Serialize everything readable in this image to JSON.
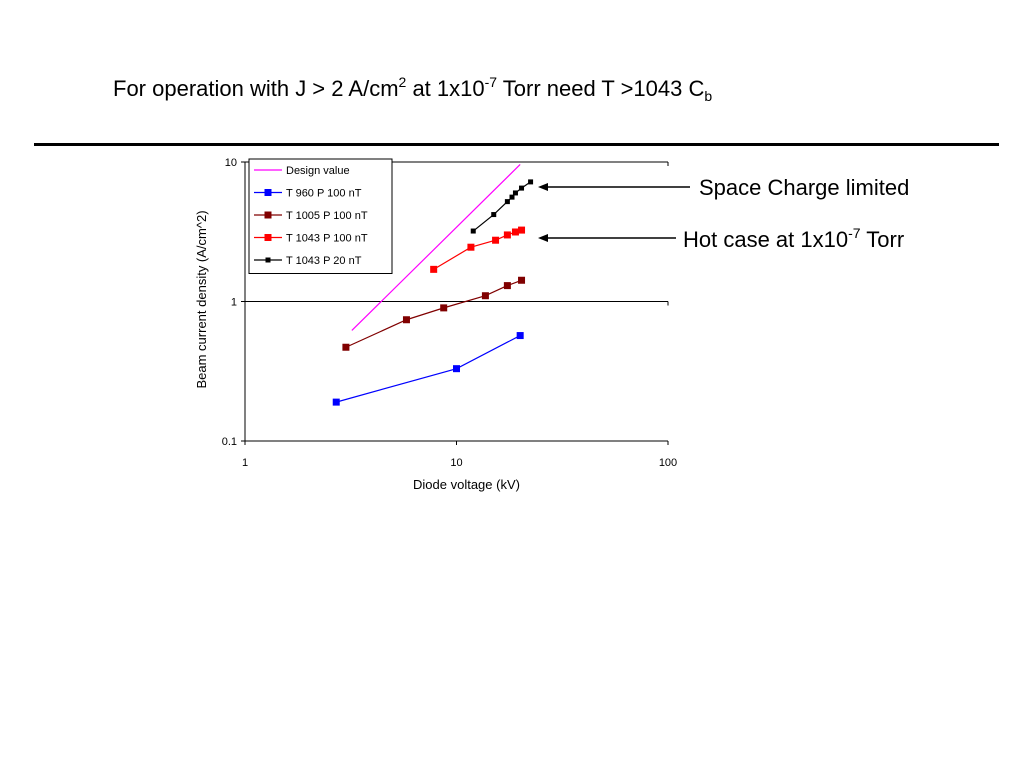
{
  "slide": {
    "title_main": "For operation with J > 2 A/cm",
    "title_sup1": "2",
    "title_mid": " at 1x10",
    "title_sup2": "-7",
    "title_end": " Torr need T >1043 C",
    "title_sub": "b"
  },
  "annotations": {
    "space_charge": "Space Charge limited",
    "hot_case_main": "Hot case at 1x10",
    "hot_case_sup": "-7",
    "hot_case_end": " Torr"
  },
  "chart_data": {
    "type": "line",
    "xlabel": "Diode voltage (kV)",
    "ylabel": "Beam current density (A/cm^2)",
    "x_scale": "log",
    "y_scale": "log",
    "xlim": [
      1,
      100
    ],
    "ylim": [
      0.1,
      10
    ],
    "x_ticks": [
      "1",
      "10",
      "100"
    ],
    "y_ticks": [
      "0.1",
      "1",
      "10"
    ],
    "gridlines": "horizontal at 1 and 10",
    "legend_position": "top-left inside plot",
    "series": [
      {
        "name": "Design value",
        "color": "#ff00ff",
        "marker": "none",
        "x": [
          3.2,
          20
        ],
        "y": [
          0.62,
          9.6
        ]
      },
      {
        "name": "T 960  P 100 nT",
        "color": "#0000ff",
        "marker": "square",
        "x": [
          2.7,
          10,
          20
        ],
        "y": [
          0.19,
          0.33,
          0.57
        ]
      },
      {
        "name": "T 1005 P 100 nT",
        "color": "#800000",
        "marker": "square",
        "x": [
          3,
          5.8,
          8.7,
          13.7,
          17.4,
          20.3
        ],
        "y": [
          0.47,
          0.74,
          0.9,
          1.1,
          1.3,
          1.42
        ]
      },
      {
        "name": "T 1043 P 100 nT",
        "color": "#ff0000",
        "marker": "square",
        "x": [
          7.8,
          11.7,
          15.3,
          17.4,
          19,
          20.3
        ],
        "y": [
          1.7,
          2.45,
          2.75,
          3.0,
          3.15,
          3.25
        ]
      },
      {
        "name": "T 1043 P 20 nT",
        "color": "#000000",
        "marker": "square-small",
        "x": [
          12,
          15,
          17.4,
          18.3,
          19,
          20.3,
          22.4
        ],
        "y": [
          3.2,
          4.2,
          5.2,
          5.6,
          6.0,
          6.5,
          7.2
        ]
      }
    ]
  }
}
